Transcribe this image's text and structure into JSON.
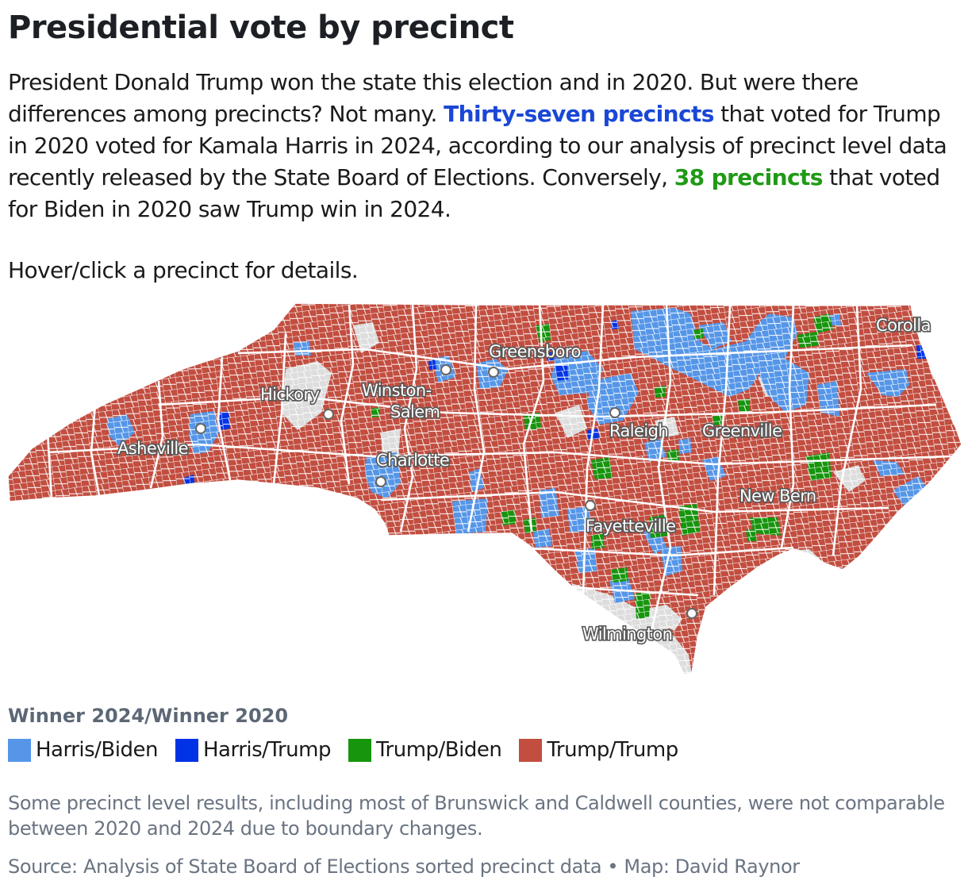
{
  "header": {
    "title": "Presidential vote by precinct",
    "intro_part1": "President Donald Trump won the state this election and in 2020. But were there differences among precincts? Not many. ",
    "intro_highlight1": "Thirty-seven precincts",
    "intro_part2": " that voted for Trump in 2020 voted for Kamala Harris in 2024, according to our analysis of precinct level data recently released by the State Board of Elections. Conversely, ",
    "intro_highlight2": "38 precincts",
    "intro_part3": " that voted for Biden in 2020 saw Trump win in 2024.",
    "hint": "Hover/click a precinct for details."
  },
  "colors": {
    "harris_biden": "#5596e8",
    "harris_trump": "#0033e6",
    "trump_biden": "#16950d",
    "trump_trump": "#c24e40",
    "not_comparable": "#dddddd"
  },
  "map": {
    "cities": [
      {
        "name": "Corolla"
      },
      {
        "name": "Greensboro"
      },
      {
        "name": "Winston-"
      },
      {
        "name": "Salem"
      },
      {
        "name": "Hickory"
      },
      {
        "name": "Raleigh"
      },
      {
        "name": "Greenville"
      },
      {
        "name": "Asheville"
      },
      {
        "name": "Charlotte"
      },
      {
        "name": "New Bern"
      },
      {
        "name": "Fayetteville"
      },
      {
        "name": "Wilmington"
      }
    ]
  },
  "legend": {
    "title": "Winner 2024/Winner 2020",
    "items": [
      {
        "label": "Harris/Biden",
        "color": "#5596e8"
      },
      {
        "label": "Harris/Trump",
        "color": "#0033e6"
      },
      {
        "label": "Trump/Biden",
        "color": "#16950d"
      },
      {
        "label": "Trump/Trump",
        "color": "#c24e40"
      }
    ]
  },
  "footer": {
    "note": "Some precinct level results, including most of Brunswick and Caldwell counties, were not comparable between 2020 and 2024 due to boundary changes.",
    "source": "Source: Analysis of State Board of Elections sorted precinct data • Map: David Raynor"
  }
}
